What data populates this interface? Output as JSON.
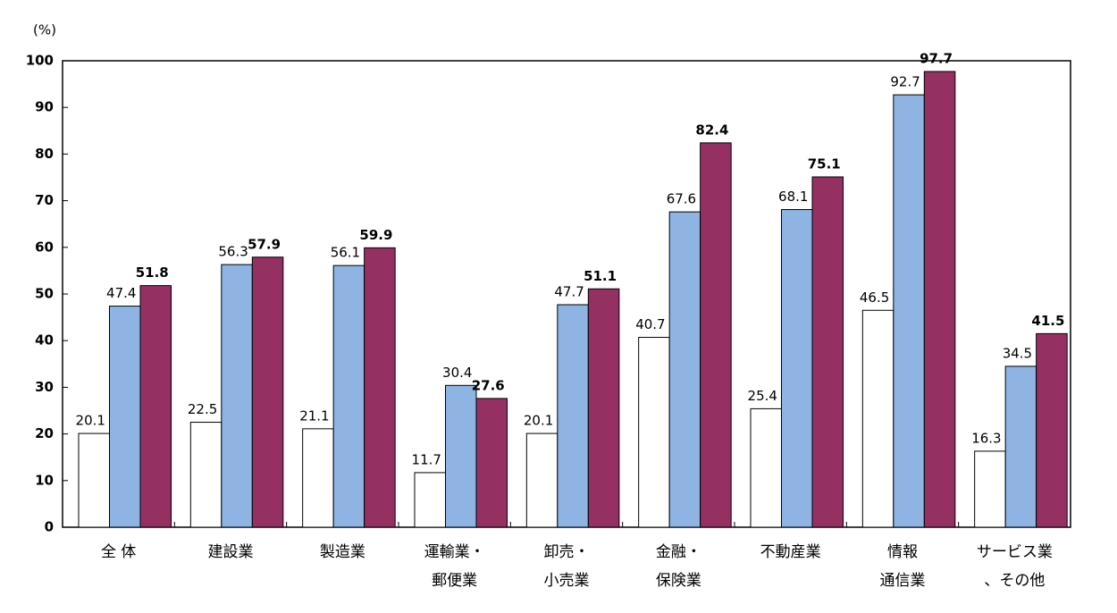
{
  "chart_data": {
    "type": "bar",
    "y_label": "(%)",
    "categories": [
      "全 体",
      "建設業",
      "製造業",
      "運輸業・\n郵便業",
      "卸売・\n小売業",
      "金融・\n保険業",
      "不動産業",
      "情報\n通信業",
      "サービス業\n、その他"
    ],
    "series": [
      {
        "color": "#ffffff",
        "values": [
          20.1,
          22.5,
          21.1,
          11.7,
          20.1,
          40.7,
          25.4,
          46.5,
          16.3
        ]
      },
      {
        "color": "#8db4e2",
        "values": [
          47.4,
          56.3,
          56.1,
          30.4,
          47.7,
          67.6,
          68.1,
          92.7,
          34.5
        ]
      },
      {
        "color": "#953162",
        "values": [
          51.8,
          57.9,
          59.9,
          27.6,
          51.1,
          82.4,
          75.1,
          97.7,
          41.5
        ],
        "bold_labels": true
      }
    ],
    "ylim": [
      0,
      100
    ],
    "yticks": [
      0,
      10,
      20,
      30,
      40,
      50,
      60,
      70,
      80,
      90,
      100
    ],
    "grid": false
  }
}
